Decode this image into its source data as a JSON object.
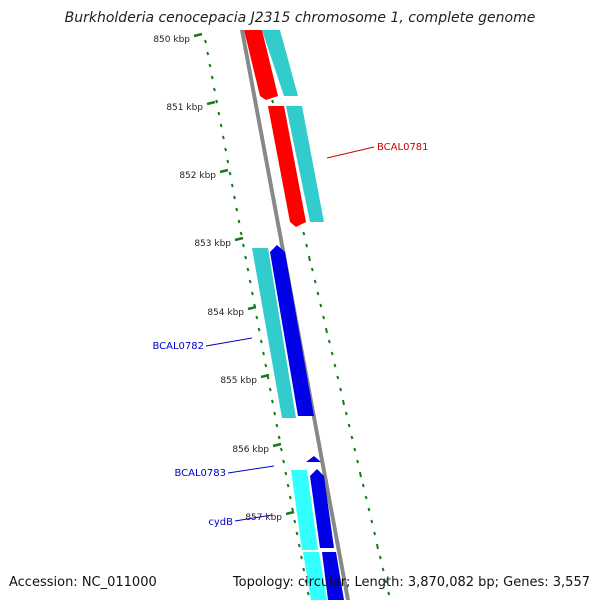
{
  "title": "Burkholderia cenocepacia J2315 chromosome 1, complete genome",
  "footer": {
    "accession": "Accession: NC_011000",
    "summary": "Topology: circular; Length: 3,870,082 bp; Genes: 3,557"
  },
  "colors": {
    "forward_cds": "#ff0000",
    "reverse_cds": "#0000e6",
    "feature_light": "#33cccc",
    "feature_bright": "#33ffff",
    "backbone": "#888888",
    "ticks": "#1a7a1a",
    "label_red": "#cc0000",
    "label_blue": "#0000cc"
  },
  "ruler": {
    "ticks": [
      "850 kbp",
      "851 kbp",
      "852 kbp",
      "853 kbp",
      "854 kbp",
      "855 kbp",
      "856 kbp",
      "857 kbp"
    ]
  },
  "features": [
    {
      "name": "BCAL0781",
      "strand": "forward",
      "color_key": "label_red"
    },
    {
      "name": "BCAL0782",
      "strand": "reverse",
      "color_key": "label_blue"
    },
    {
      "name": "BCAL0783",
      "strand": "reverse",
      "color_key": "label_blue"
    },
    {
      "name": "cydB",
      "strand": "reverse",
      "color_key": "label_blue"
    }
  ]
}
